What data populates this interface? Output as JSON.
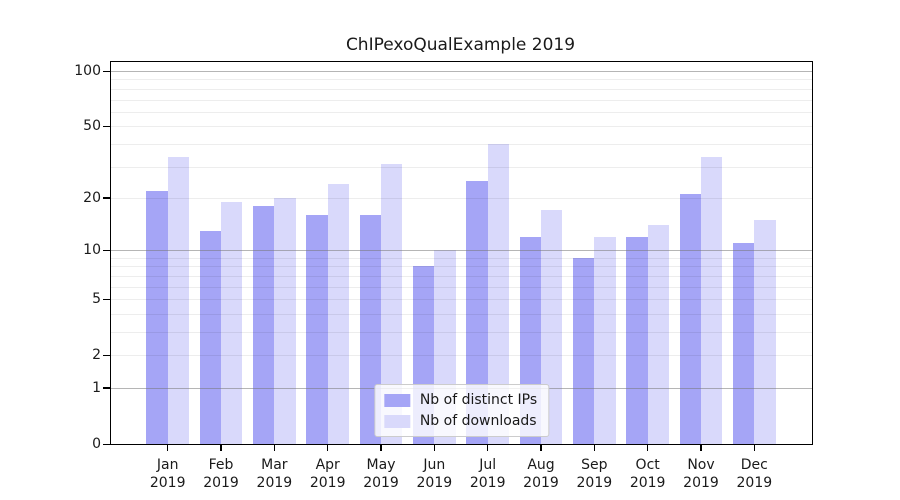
{
  "chart_data": {
    "type": "bar",
    "title": "ChIPexoQualExample 2019",
    "categories": [
      "Jan",
      "Feb",
      "Mar",
      "Apr",
      "May",
      "Jun",
      "Jul",
      "Aug",
      "Sep",
      "Oct",
      "Nov",
      "Dec"
    ],
    "x_year_label": "2019",
    "series": [
      {
        "name": "Nb of distinct IPs",
        "color": "#a5a5f6",
        "values": [
          22,
          13,
          18,
          16,
          16,
          8,
          25,
          12,
          9,
          12,
          21,
          11
        ]
      },
      {
        "name": "Nb of downloads",
        "color": "#d9d9fb",
        "values": [
          34,
          19,
          20,
          24,
          31,
          10,
          40,
          17,
          12,
          14,
          34,
          15
        ]
      }
    ],
    "xlabel": "",
    "ylabel": "",
    "yscale": "log1p",
    "ylim": [
      0,
      112
    ],
    "yticks": [
      0,
      1,
      2,
      5,
      10,
      20,
      50,
      100
    ],
    "grid_major_values": [
      1,
      10,
      100
    ],
    "grid_minor_values": [
      2,
      3,
      4,
      5,
      6,
      7,
      8,
      9,
      20,
      30,
      40,
      50,
      60,
      70,
      80,
      90
    ],
    "grid": "on",
    "legend_position": "lower center"
  }
}
